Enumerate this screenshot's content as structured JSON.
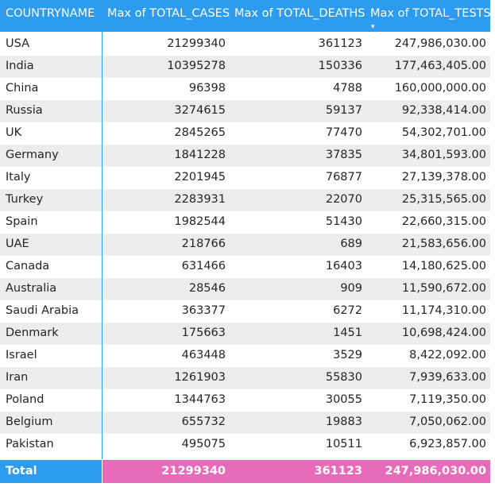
{
  "table": {
    "columns": [
      "COUNTRYNAME",
      "Max of TOTAL_CASES",
      "Max of TOTAL_DEATHS",
      "Max of TOTAL_TESTS"
    ],
    "sort_indicator": "▾",
    "colors": {
      "header": "#2d9cf0",
      "total_highlight": "#e86bbb",
      "alt_row": "#ececec"
    },
    "rows": [
      [
        "USA",
        "21299340",
        "361123",
        "247,986,030.00"
      ],
      [
        "India",
        "10395278",
        "150336",
        "177,463,405.00"
      ],
      [
        "China",
        "96398",
        "4788",
        "160,000,000.00"
      ],
      [
        "Russia",
        "3274615",
        "59137",
        "92,338,414.00"
      ],
      [
        "UK",
        "2845265",
        "77470",
        "54,302,701.00"
      ],
      [
        "Germany",
        "1841228",
        "37835",
        "34,801,593.00"
      ],
      [
        "Italy",
        "2201945",
        "76877",
        "27,139,378.00"
      ],
      [
        "Turkey",
        "2283931",
        "22070",
        "25,315,565.00"
      ],
      [
        "Spain",
        "1982544",
        "51430",
        "22,660,315.00"
      ],
      [
        "UAE",
        "218766",
        "689",
        "21,583,656.00"
      ],
      [
        "Canada",
        "631466",
        "16403",
        "14,180,625.00"
      ],
      [
        "Australia",
        "28546",
        "909",
        "11,590,672.00"
      ],
      [
        "Saudi Arabia",
        "363377",
        "6272",
        "11,174,310.00"
      ],
      [
        "Denmark",
        "175663",
        "1451",
        "10,698,424.00"
      ],
      [
        "Israel",
        "463448",
        "3529",
        "8,422,092.00"
      ],
      [
        "Iran",
        "1261903",
        "55830",
        "7,939,633.00"
      ],
      [
        "Poland",
        "1344763",
        "30055",
        "7,119,350.00"
      ],
      [
        "Belgium",
        "655732",
        "19883",
        "7,050,062.00"
      ],
      [
        "Pakistan",
        "495075",
        "10511",
        "6,923,857.00"
      ]
    ],
    "total": [
      "Total",
      "21299340",
      "361123",
      "247,986,030.00"
    ]
  }
}
